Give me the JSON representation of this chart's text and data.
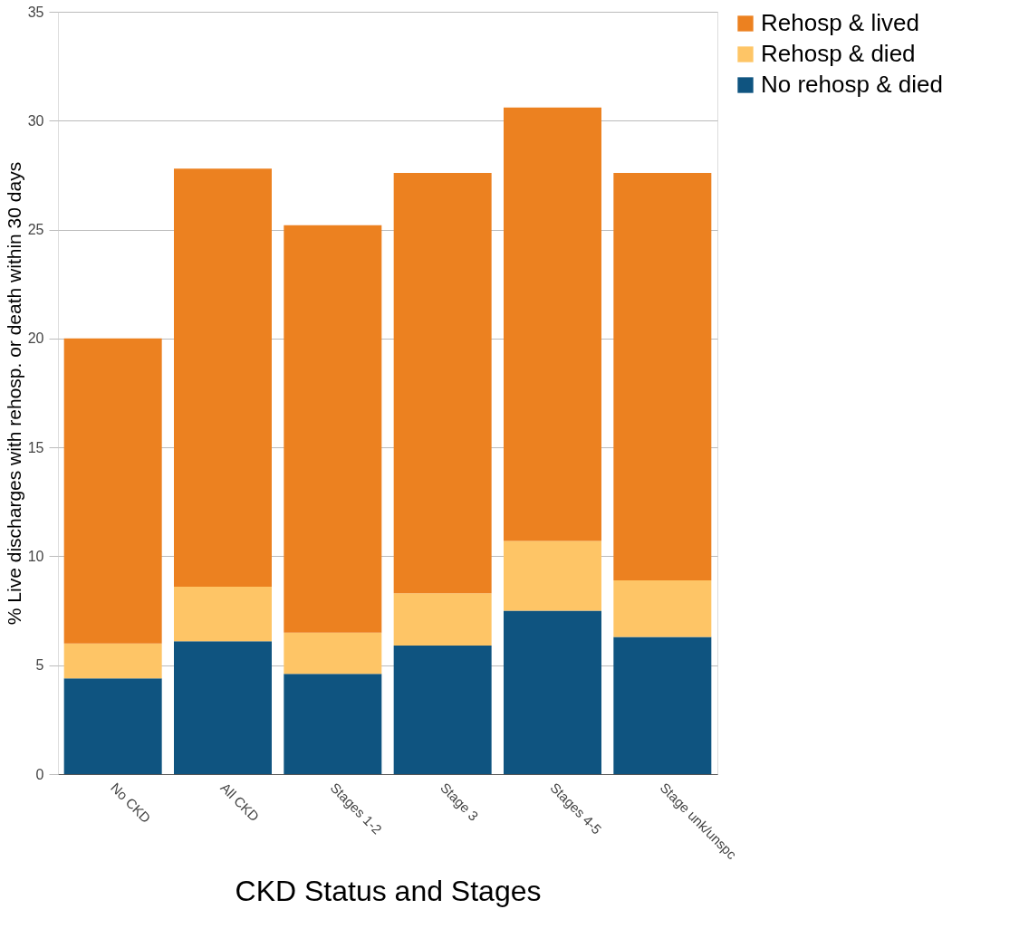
{
  "chart_data": {
    "type": "bar",
    "stacked": true,
    "xlabel": "CKD Status and Stages",
    "ylabel": "% Live discharges with rehosp. or death within 30 days",
    "categories": [
      "No CKD",
      "All CKD",
      "Stages 1-2",
      "Stage 3",
      "Stages 4-5",
      "Stage unk/unspc"
    ],
    "series": [
      {
        "name": "No rehosp & died",
        "color": "#0f5480",
        "values": [
          4.4,
          6.1,
          4.6,
          5.9,
          7.5,
          6.3
        ]
      },
      {
        "name": "Rehosp & died",
        "color": "#fec566",
        "values": [
          1.6,
          2.5,
          1.9,
          2.4,
          3.2,
          2.6
        ]
      },
      {
        "name": "Rehosp & lived",
        "color": "#ec8120",
        "values": [
          14.0,
          19.2,
          18.7,
          19.3,
          19.9,
          18.7
        ]
      }
    ],
    "ylim": [
      0,
      35
    ],
    "yticks": [
      0,
      5,
      10,
      15,
      20,
      25,
      30,
      35
    ],
    "grid": "y",
    "legend": "right"
  }
}
